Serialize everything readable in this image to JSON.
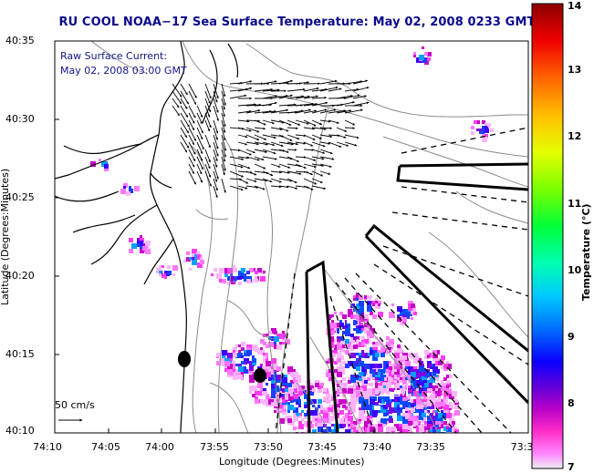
{
  "title": "RU COOL  NOAA−17  Sea Surface Temperature:  May 02, 2008 0233 GMT",
  "annotation": {
    "line1": "Raw Surface Current:",
    "line2": "May 02, 2008 03:00 GMT"
  },
  "scale": {
    "label": "50 cm/s"
  },
  "axes": {
    "xlabel": "Longitude (Degrees:Minutes)",
    "ylabel": "Latitude (Degrees:Minutes)",
    "xticks": [
      "74:10",
      "74:05",
      "74:00",
      "73:55",
      "73:50",
      "73:45",
      "73:40",
      "73:35",
      "73:3"
    ],
    "yticks": [
      "40:35",
      "40:30",
      "40:25",
      "40:20",
      "40:15",
      "40:10"
    ]
  },
  "colorbar": {
    "label": "Temperature (°C)",
    "ticks": [
      "14",
      "13",
      "12",
      "11",
      "10",
      "9",
      "8",
      "7"
    ],
    "min": 7,
    "max": 14
  },
  "colors": {
    "title": "#0a0a8c",
    "annotation": "#14148c",
    "coastline": "#000000",
    "bathymetry": "#8c8c8c"
  }
}
